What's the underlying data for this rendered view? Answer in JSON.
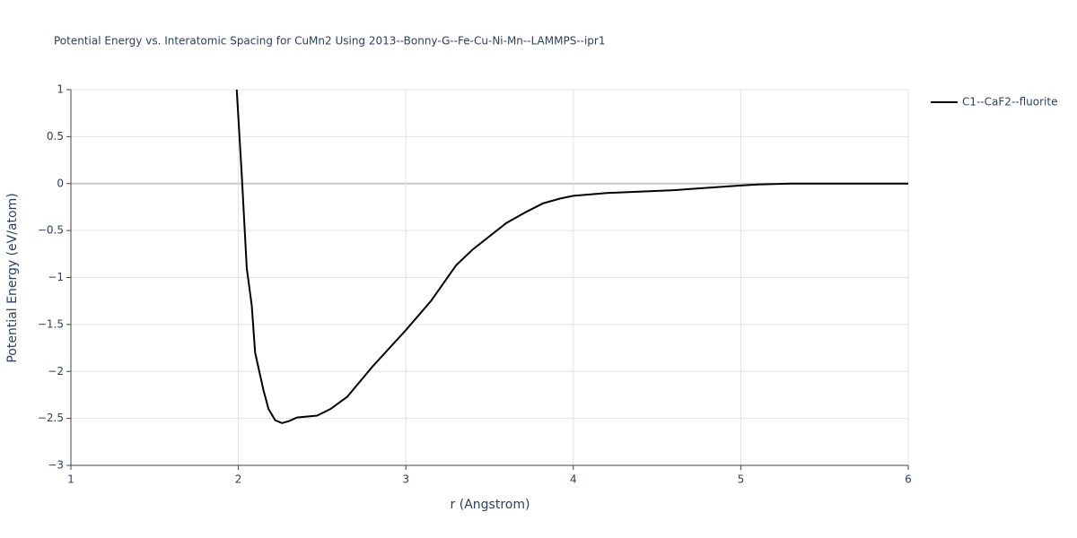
{
  "chart_data": {
    "type": "line",
    "title": "Potential Energy vs. Interatomic Spacing for CuMn2 Using 2013--Bonny-G--Fe-Cu-Ni-Mn--LAMMPS--ipr1",
    "x_label": "r (Angstrom)",
    "y_label": "Potential Energy (eV/atom)",
    "x": [
      1.99,
      2.02,
      2.05,
      2.08,
      2.1,
      2.15,
      2.18,
      2.22,
      2.26,
      2.3,
      2.35,
      2.47,
      2.55,
      2.65,
      2.8,
      3.0,
      3.15,
      3.3,
      3.4,
      3.6,
      3.72,
      3.82,
      3.92,
      4.0,
      4.2,
      4.6,
      5.0,
      5.1,
      5.3,
      6.0
    ],
    "series": [
      {
        "name": "C1--CaF2--fluorite",
        "color": "#000000",
        "values": [
          1.0,
          0.1,
          -0.9,
          -1.3,
          -1.8,
          -2.2,
          -2.4,
          -2.52,
          -2.55,
          -2.53,
          -2.49,
          -2.47,
          -2.4,
          -2.27,
          -1.95,
          -1.56,
          -1.25,
          -0.87,
          -0.7,
          -0.42,
          -0.3,
          -0.21,
          -0.16,
          -0.13,
          -0.1,
          -0.07,
          -0.02,
          -0.01,
          0,
          0
        ]
      }
    ],
    "xlim": [
      1,
      6
    ],
    "xticks": [
      1,
      2,
      3,
      4,
      5,
      6
    ],
    "ylim": [
      -3,
      1
    ],
    "yticks": [
      1,
      0.5,
      0,
      {
        "value": -0.5,
        "label": "−0.5"
      },
      {
        "value": -1,
        "label": "−1"
      },
      {
        "value": -1.5,
        "label": "−1.5"
      },
      {
        "value": -2,
        "label": "−2"
      },
      {
        "value": -2.5,
        "label": "−2.5"
      },
      {
        "value": -3,
        "label": "−3"
      }
    ],
    "grid": true,
    "legend": "right"
  }
}
